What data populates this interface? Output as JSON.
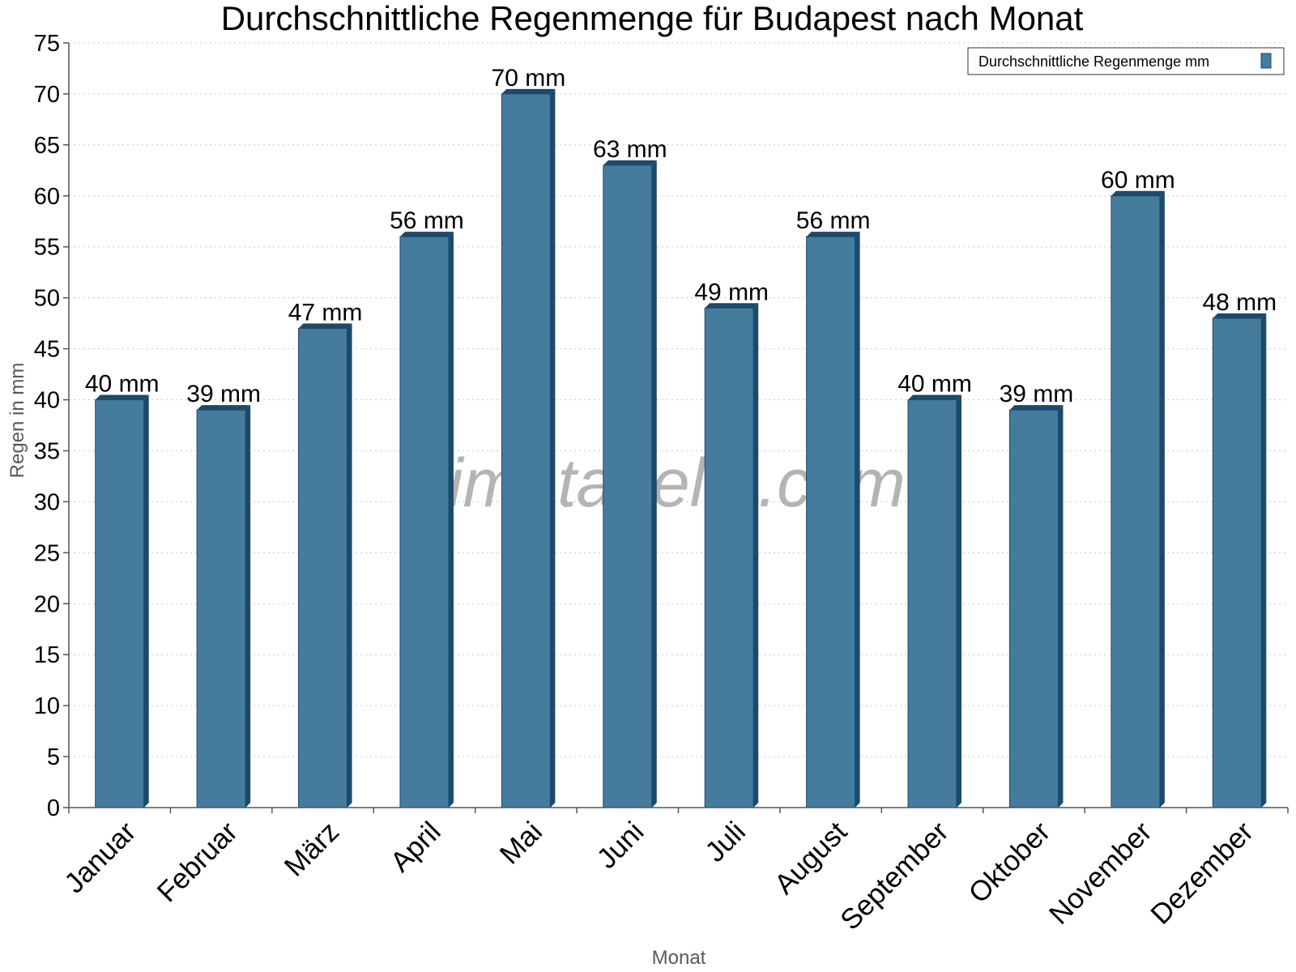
{
  "chart_data": {
    "type": "bar",
    "title": "Durchschnittliche Regenmenge für Budapest nach Monat",
    "xlabel": "Monat",
    "ylabel": "Regen in mm",
    "ylim": [
      0,
      75
    ],
    "ytick_step": 5,
    "grid": true,
    "legend_position": "top-right",
    "categories": [
      "Januar",
      "Februar",
      "März",
      "April",
      "Mai",
      "Juni",
      "Juli",
      "August",
      "September",
      "Oktober",
      "November",
      "Dezember"
    ],
    "series": [
      {
        "name": "Durchschnittliche Regenmenge mm",
        "values": [
          40,
          39,
          47,
          56,
          70,
          63,
          49,
          56,
          40,
          39,
          60,
          48
        ],
        "labels": [
          "40 mm",
          "39 mm",
          "47 mm",
          "56 mm",
          "70 mm",
          "63 mm",
          "49 mm",
          "56 mm",
          "40 mm",
          "39 mm",
          "60 mm",
          "48 mm"
        ],
        "color": "#457b9d",
        "edge_color": "#1b4a6b"
      }
    ],
    "watermark": "klimatabelle.com"
  }
}
